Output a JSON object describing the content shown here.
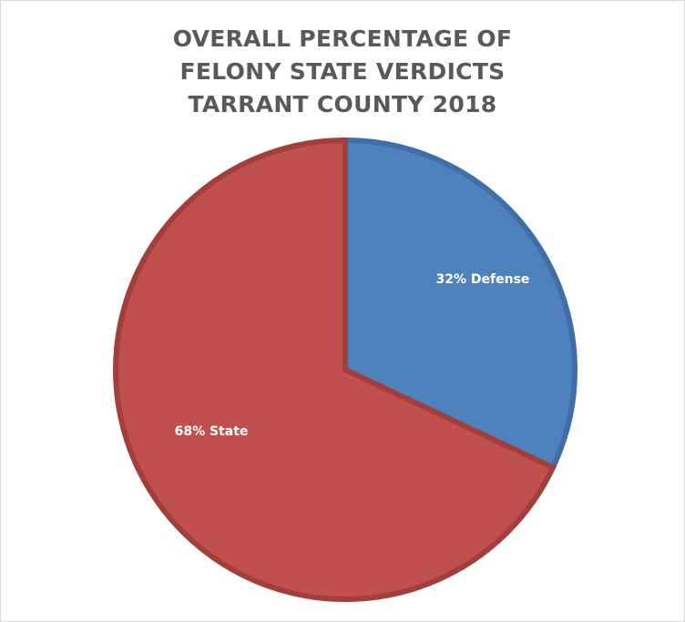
{
  "chart_data": {
    "type": "pie",
    "title_lines": [
      "OVERALL PERCENTAGE  OF",
      "FELONY STATE VERDICTS",
      "TARRANT COUNTY 2018"
    ],
    "slices": [
      {
        "name": "Defense",
        "value": 32,
        "label": "32% Defense",
        "color": "#4f81bd",
        "border": "#3f6ea8"
      },
      {
        "name": "State",
        "value": 68,
        "label": "68% State",
        "color": "#c0504d",
        "border": "#a23e3b"
      }
    ],
    "start_angle_deg": 0,
    "direction": "clockwise",
    "legend": "none"
  }
}
